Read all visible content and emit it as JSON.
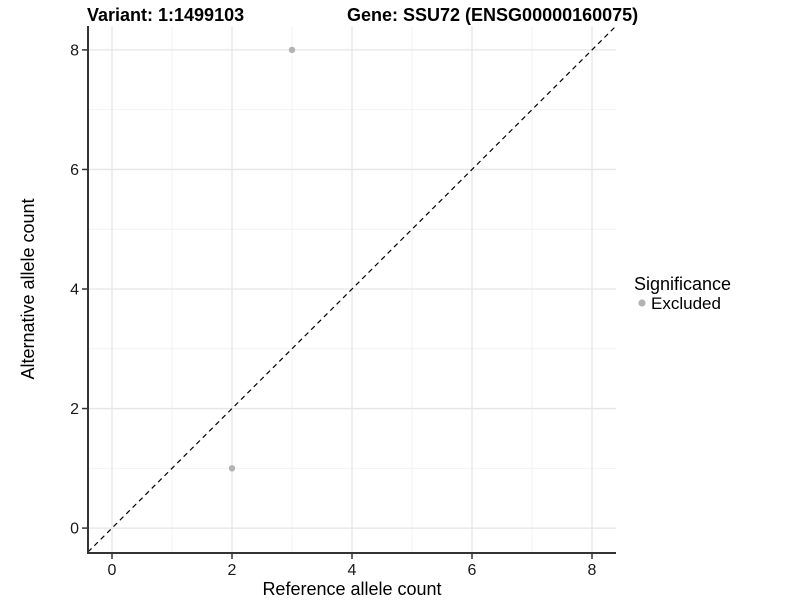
{
  "header": {
    "variant_title": "Variant: 1:1499103",
    "gene_title": "Gene: SSU72 (ENSG00000160075)"
  },
  "chart_data": {
    "type": "scatter",
    "titles": [
      "Variant: 1:1499103",
      "Gene: SSU72 (ENSG00000160075)"
    ],
    "xlabel": "Reference allele count",
    "ylabel": "Alternative allele count",
    "xlim": [
      -0.4,
      8.4
    ],
    "ylim": [
      -0.4,
      8.4
    ],
    "x_major_ticks": [
      0,
      2,
      4,
      6,
      8
    ],
    "x_minor_ticks": [
      1,
      3,
      5,
      7
    ],
    "y_major_ticks": [
      0,
      2,
      4,
      6,
      8
    ],
    "y_minor_ticks": [
      1,
      3,
      5,
      7
    ],
    "grid": true,
    "reference_line": {
      "type": "identity",
      "from": -0.4,
      "to": 8.4,
      "style": "dashed",
      "color": "#000000"
    },
    "series": [
      {
        "name": "Excluded",
        "color": "#b3b3b3",
        "points": [
          {
            "x": 3,
            "y": 8
          },
          {
            "x": 2,
            "y": 1
          }
        ]
      }
    ],
    "legend": {
      "title": "Significance",
      "position": "right",
      "items": [
        {
          "label": "Excluded",
          "color": "#b3b3b3"
        }
      ]
    }
  },
  "colors": {
    "background": "#ffffff",
    "axis": "#333333",
    "grid_major": "#e6e6e6",
    "grid_minor": "#f2f2f2",
    "point": "#b3b3b3",
    "tick_text": "#1a1a1a"
  }
}
